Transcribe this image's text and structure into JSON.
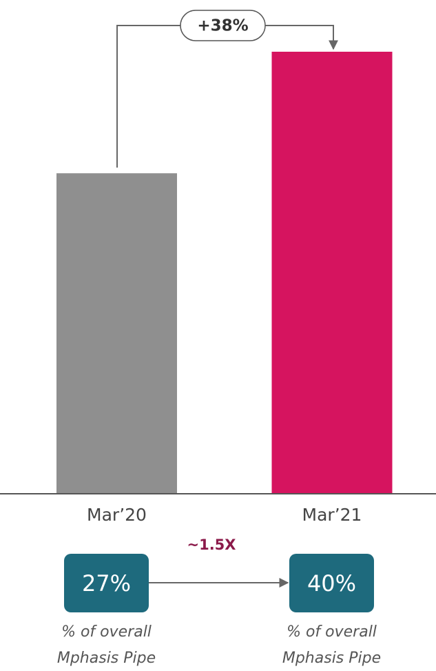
{
  "chart_data": {
    "type": "bar",
    "categories": [
      "Mar’20",
      "Mar’21"
    ],
    "values": [
      100,
      138
    ],
    "colors": [
      "#8f8f8f",
      "#d6145f"
    ],
    "ylim": [
      0,
      138
    ],
    "annotations": {
      "growth": "+38%",
      "multiplier": "~1.5X",
      "shares": [
        "27%",
        "40%"
      ],
      "captions": [
        [
          "% of overall",
          "Mphasis Pipe"
        ],
        [
          "% of overall",
          "Mphasis Pipe"
        ]
      ]
    }
  }
}
